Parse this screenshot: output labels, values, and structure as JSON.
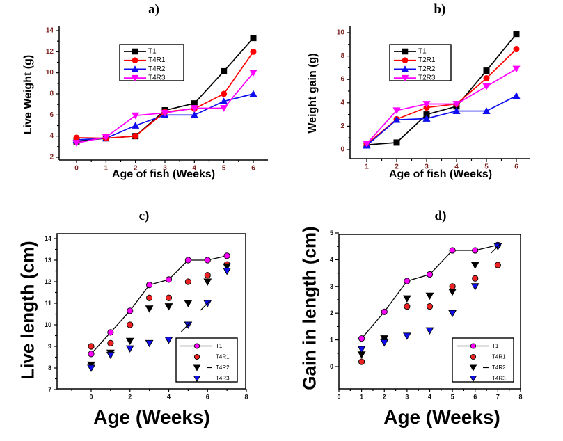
{
  "figure": {
    "background": "#ffffff",
    "description": "Four-panel fish growth figure"
  },
  "colors": {
    "black": "#000000",
    "red": "#ff0000",
    "blue": "#0d0df0",
    "magenta": "#ff00ff",
    "red_cd": "#ee2222",
    "tick_label_ab": "#7e2320",
    "tick_label_cd": "#111111",
    "axis_line": "#000000",
    "legend_border": "#000000"
  },
  "chart_data": [
    {
      "type": "line",
      "panel_label": "a)",
      "xlabel": "Age of fish (Weeks)",
      "ylabel": "Live Weight (g)",
      "xticks": [
        0,
        1,
        2,
        3,
        4,
        5,
        6
      ],
      "yticks": [
        2,
        4,
        6,
        8,
        10,
        12,
        14
      ],
      "xlim": [
        -0.6,
        6.5
      ],
      "ylim": [
        1.7,
        14.4
      ],
      "legend_position": "upper-left-inside",
      "series": [
        {
          "name": "T1",
          "color": "#000000",
          "marker": "square",
          "line": true,
          "x": [
            0,
            1,
            2,
            3,
            4,
            5,
            6
          ],
          "y": [
            3.5,
            3.8,
            4.0,
            6.45,
            7.1,
            10.15,
            13.3
          ]
        },
        {
          "name": "T4R1",
          "color": "#ff0000",
          "marker": "circle",
          "line": true,
          "x": [
            0,
            1,
            2,
            3,
            4,
            5,
            6
          ],
          "y": [
            3.85,
            3.8,
            4.0,
            6.3,
            6.6,
            8.0,
            12.0
          ]
        },
        {
          "name": "T4R2",
          "color": "#0d0df0",
          "marker": "triangle-up",
          "line": true,
          "x": [
            0,
            1,
            2,
            3,
            4,
            5,
            6
          ],
          "y": [
            3.65,
            3.8,
            5.0,
            6.0,
            6.0,
            7.3,
            8.0
          ]
        },
        {
          "name": "T4R3",
          "color": "#ff00ff",
          "marker": "triangle-down",
          "line": true,
          "x": [
            0,
            1,
            2,
            3,
            4,
            5,
            6
          ],
          "y": [
            3.35,
            3.9,
            5.95,
            6.2,
            6.65,
            6.65,
            10.0
          ]
        }
      ]
    },
    {
      "type": "line",
      "panel_label": "b)",
      "xlabel": "Age of fish (Weeks)",
      "ylabel": "Weight gain (g)",
      "xticks": [
        1,
        2,
        3,
        4,
        5,
        6
      ],
      "yticks": [
        0,
        2,
        4,
        6,
        8,
        10
      ],
      "xlim": [
        0.4,
        6.5
      ],
      "ylim": [
        -0.8,
        10.5
      ],
      "legend_position": "upper-left-inside",
      "series": [
        {
          "name": "T1",
          "color": "#000000",
          "marker": "square",
          "line": true,
          "x": [
            1,
            2,
            3,
            4,
            5,
            6
          ],
          "y": [
            0.4,
            0.6,
            3.0,
            3.7,
            6.75,
            9.9
          ]
        },
        {
          "name": "T2R1",
          "color": "#ff0000",
          "marker": "circle",
          "line": true,
          "x": [
            1,
            2,
            3,
            4,
            5,
            6
          ],
          "y": [
            0.45,
            2.6,
            3.6,
            3.9,
            6.1,
            8.6
          ]
        },
        {
          "name": "T2R2",
          "color": "#0d0df0",
          "marker": "triangle-up",
          "line": true,
          "x": [
            1,
            2,
            3,
            4,
            5,
            6
          ],
          "y": [
            0.35,
            2.55,
            2.65,
            3.3,
            3.3,
            4.6
          ]
        },
        {
          "name": "T2R3",
          "color": "#ff00ff",
          "marker": "triangle-down",
          "line": true,
          "x": [
            1,
            2,
            3,
            4,
            5,
            6
          ],
          "y": [
            0.5,
            3.35,
            3.9,
            3.9,
            5.4,
            6.9
          ]
        }
      ]
    },
    {
      "type": "scatter",
      "panel_label": "c)",
      "xlabel": "Age (Weeks)",
      "ylabel": "Live length (cm)",
      "xticks": [
        0,
        2,
        4,
        6,
        8
      ],
      "yticks": [
        7,
        8,
        9,
        10,
        11,
        12,
        13,
        14
      ],
      "xlim": [
        -1.75,
        8.05
      ],
      "ylim": [
        6.95,
        14.2
      ],
      "legend_position": "lower-right-inside",
      "series": [
        {
          "name": "T1",
          "color": "#ff00ff",
          "edge": "#000000",
          "marker": "circle",
          "line": true,
          "x": [
            0,
            1,
            2,
            3,
            4,
            5,
            6,
            7
          ],
          "y": [
            8.65,
            9.65,
            10.65,
            11.85,
            12.1,
            13.0,
            13.0,
            13.2
          ]
        },
        {
          "name": "T4R1",
          "color": "#ee2222",
          "edge": "#000000",
          "marker": "circle",
          "line": false,
          "x": [
            0,
            1,
            2,
            3,
            4,
            5,
            6,
            7
          ],
          "y": [
            9.0,
            9.15,
            10.0,
            11.25,
            11.25,
            12.0,
            12.3,
            12.8
          ]
        },
        {
          "name": "T4R2",
          "color": "#000000",
          "edge": "#000000",
          "marker": "triangle-down",
          "line": false,
          "x": [
            0,
            1,
            2,
            3,
            4,
            5,
            6,
            7
          ],
          "y": [
            8.15,
            8.7,
            9.25,
            10.75,
            10.85,
            11.0,
            12.0,
            12.7
          ]
        },
        {
          "name": "T4R3",
          "color": "#0d0df0",
          "edge": "#000000",
          "marker": "triangle-down",
          "line": false,
          "x": [
            0,
            1,
            2,
            3,
            4,
            5,
            6,
            7
          ],
          "y": [
            8.0,
            8.6,
            8.9,
            9.15,
            9.3,
            10.0,
            11.0,
            12.5
          ]
        }
      ],
      "annotations": [
        {
          "x": 5,
          "y": 10.0
        },
        {
          "x": 6,
          "y": 11.0
        }
      ]
    },
    {
      "type": "scatter",
      "panel_label": "d)",
      "xlabel": "Age (Weeks)",
      "ylabel": "Gain in length (cm)",
      "xticks": [
        0,
        1,
        2,
        3,
        4,
        5,
        6,
        7,
        8
      ],
      "yticks": [
        0,
        1,
        2,
        3,
        4,
        5
      ],
      "xlim": [
        0,
        8
      ],
      "ylim": [
        -0.85,
        5.05
      ],
      "legend_position": "lower-right-inside",
      "series": [
        {
          "name": "T1",
          "color": "#ff00ff",
          "edge": "#000000",
          "marker": "circle",
          "line": true,
          "x": [
            1,
            2,
            3,
            4,
            5,
            6,
            7
          ],
          "y": [
            1.05,
            2.05,
            3.2,
            3.45,
            4.35,
            4.35,
            4.55
          ]
        },
        {
          "name": "T4R1",
          "color": "#ee2222",
          "edge": "#000000",
          "marker": "circle",
          "line": false,
          "x": [
            1,
            2,
            3,
            4,
            5,
            6,
            7
          ],
          "y": [
            0.18,
            1.0,
            2.25,
            2.25,
            3.0,
            3.3,
            3.8
          ]
        },
        {
          "name": "T4R2",
          "color": "#000000",
          "edge": "#000000",
          "marker": "triangle-down",
          "line": false,
          "x": [
            1,
            2,
            3,
            4,
            5,
            6
          ],
          "y": [
            0.45,
            1.05,
            2.55,
            2.65,
            2.8,
            3.8
          ]
        },
        {
          "name": "T4R3",
          "color": "#0d0df0",
          "edge": "#000000",
          "marker": "triangle-down",
          "line": false,
          "x": [
            1,
            2,
            3,
            4,
            5,
            6,
            7
          ],
          "y": [
            0.65,
            0.9,
            1.15,
            1.35,
            2.0,
            3.0,
            4.5
          ]
        }
      ],
      "annotations": [
        {
          "x": 7,
          "y": 4.5
        }
      ]
    }
  ]
}
